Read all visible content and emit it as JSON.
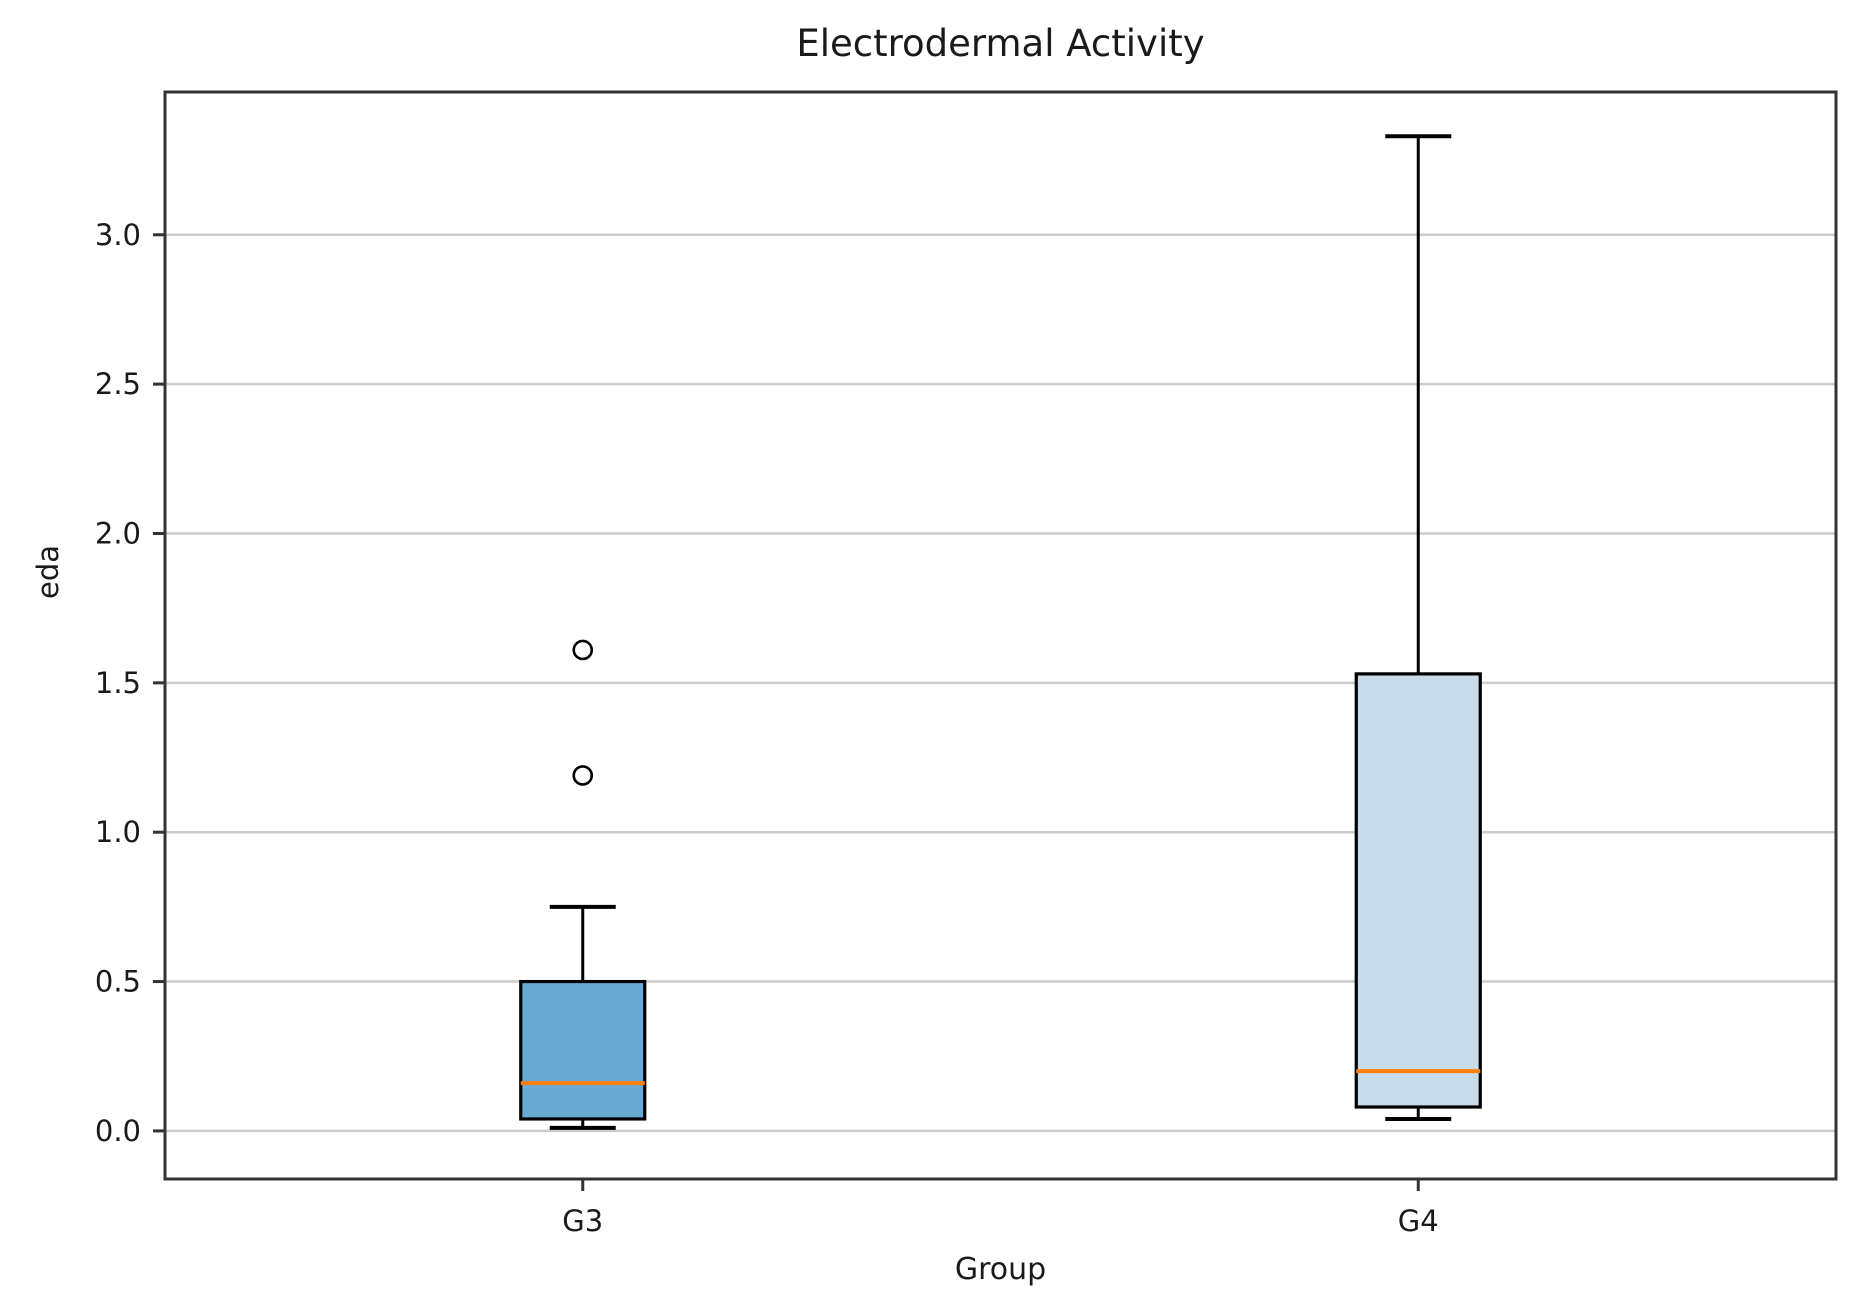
{
  "chart_data": {
    "type": "boxplot",
    "title": "Electrodermal Activity",
    "xlabel": "Group",
    "ylabel": "eda",
    "categories": [
      "G3",
      "G4"
    ],
    "yticks": [
      "0.0",
      "0.5",
      "1.0",
      "1.5",
      "2.0",
      "2.5",
      "3.0"
    ],
    "ylim": [
      -0.161,
      3.478
    ],
    "grid": "horizontal-only",
    "legend": "none",
    "series": [
      {
        "name": "G3",
        "whisker_low": 0.01,
        "q1": 0.04,
        "median": 0.16,
        "q3": 0.5,
        "whisker_high": 0.75,
        "outliers": [
          1.19,
          1.61
        ],
        "box_color": "#69aad4"
      },
      {
        "name": "G4",
        "whisker_low": 0.04,
        "q1": 0.08,
        "median": 0.2,
        "q3": 1.53,
        "whisker_high": 3.33,
        "outliers": [],
        "box_color": "#c7dbea"
      }
    ],
    "colors": {
      "median": "#ff7f0e",
      "box_edge": "#000000",
      "whisker": "#000000",
      "grid": "#cccccc",
      "spine": "#333333",
      "text": "#1a1a1a",
      "background": "#ffffff"
    }
  }
}
